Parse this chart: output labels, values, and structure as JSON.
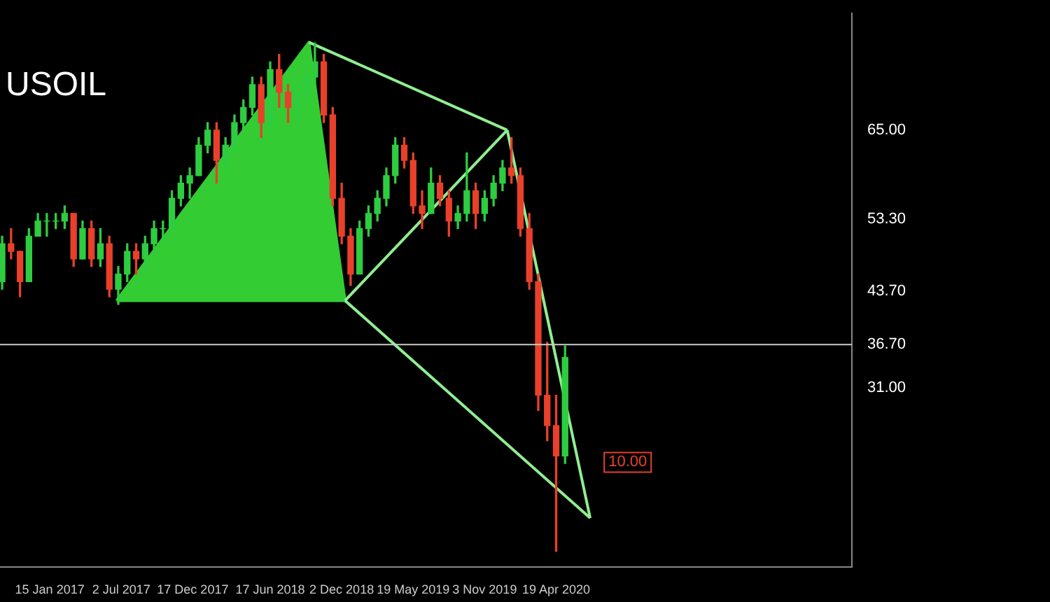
{
  "chart_data": {
    "type": "candlestick",
    "title": "USOIL",
    "x": [
      "2016-09-25",
      "2016-10-16",
      "2016-11-06",
      "2016-11-27",
      "2016-12-18",
      "2017-01-08",
      "2017-01-29",
      "2017-02-19",
      "2017-03-12",
      "2017-04-02",
      "2017-04-23",
      "2017-05-14",
      "2017-06-04",
      "2017-06-25",
      "2017-07-16",
      "2017-08-06",
      "2017-08-27",
      "2017-09-17",
      "2017-10-08",
      "2017-10-29",
      "2017-11-19",
      "2017-12-10",
      "2017-12-31",
      "2018-01-21",
      "2018-02-11",
      "2018-03-04",
      "2018-03-25",
      "2018-04-15",
      "2018-05-06",
      "2018-05-27",
      "2018-06-17",
      "2018-07-08",
      "2018-07-29",
      "2018-08-19",
      "2018-09-09",
      "2018-09-30",
      "2018-10-21",
      "2018-11-11",
      "2018-12-02",
      "2018-12-23",
      "2019-01-13",
      "2019-02-03",
      "2019-02-24",
      "2019-03-17",
      "2019-04-07",
      "2019-04-28",
      "2019-05-19",
      "2019-06-09",
      "2019-06-30",
      "2019-07-21",
      "2019-08-11",
      "2019-09-01",
      "2019-09-22",
      "2019-10-13",
      "2019-11-03",
      "2019-11-24",
      "2019-12-15",
      "2020-01-05",
      "2020-01-26",
      "2020-02-16",
      "2020-03-08",
      "2020-03-29",
      "2020-04-19",
      "2020-05-10"
    ],
    "ohlc": [
      [
        45,
        51,
        44,
        50
      ],
      [
        50,
        52,
        48,
        49
      ],
      [
        49,
        49,
        43,
        45
      ],
      [
        45,
        52,
        45,
        51
      ],
      [
        51,
        54,
        51,
        53
      ],
      [
        53,
        54,
        51,
        53
      ],
      [
        53,
        54,
        52,
        53
      ],
      [
        53,
        55,
        52,
        54
      ],
      [
        54,
        54,
        47,
        48
      ],
      [
        48,
        53,
        48,
        52
      ],
      [
        52,
        53,
        47,
        48
      ],
      [
        48,
        52,
        47,
        50
      ],
      [
        50,
        51,
        43,
        44
      ],
      [
        44,
        47,
        42,
        46
      ],
      [
        46,
        50,
        45,
        49
      ],
      [
        49,
        50,
        46,
        48
      ],
      [
        48,
        51,
        46,
        50
      ],
      [
        50,
        53,
        49,
        52
      ],
      [
        52,
        53,
        50,
        52
      ],
      [
        52,
        57,
        52,
        56
      ],
      [
        56,
        59,
        55,
        58
      ],
      [
        58,
        60,
        56,
        59
      ],
      [
        59,
        64,
        59,
        63
      ],
      [
        63,
        66,
        62,
        65
      ],
      [
        65,
        66,
        58,
        61
      ],
      [
        61,
        64,
        60,
        63
      ],
      [
        63,
        67,
        62,
        66
      ],
      [
        66,
        69,
        65,
        68
      ],
      [
        68,
        72,
        67,
        71
      ],
      [
        71,
        72,
        64,
        66
      ],
      [
        66,
        74,
        65,
        73
      ],
      [
        73,
        75,
        68,
        70
      ],
      [
        70,
        71,
        66,
        68
      ],
      [
        68,
        71,
        66,
        70
      ],
      [
        70,
        73,
        68,
        72
      ],
      [
        72,
        76.5,
        71,
        74
      ],
      [
        74,
        75,
        66,
        67
      ],
      [
        67,
        68,
        55,
        56
      ],
      [
        56,
        58,
        50,
        51
      ],
      [
        51,
        52,
        44.5,
        46
      ],
      [
        46,
        53,
        46,
        52
      ],
      [
        52,
        55,
        51,
        54
      ],
      [
        54,
        57,
        53,
        56
      ],
      [
        56,
        60,
        55,
        59
      ],
      [
        59,
        64,
        58,
        63
      ],
      [
        63,
        64,
        60,
        61
      ],
      [
        61,
        62,
        54,
        55
      ],
      [
        55,
        57,
        52,
        54
      ],
      [
        54,
        60,
        54,
        58
      ],
      [
        58,
        59,
        55,
        56
      ],
      [
        56,
        57,
        51,
        53
      ],
      [
        53,
        55,
        52,
        54
      ],
      [
        54,
        62,
        53,
        57
      ],
      [
        57,
        58,
        52,
        54
      ],
      [
        54,
        57,
        53,
        56
      ],
      [
        56,
        59,
        55,
        58
      ],
      [
        58,
        61,
        57,
        60
      ],
      [
        60,
        64,
        58,
        59
      ],
      [
        59,
        60,
        51,
        52
      ],
      [
        52,
        54,
        44,
        45
      ],
      [
        45,
        46,
        28,
        30
      ],
      [
        30,
        37,
        24,
        26
      ],
      [
        26,
        30,
        9.4,
        22
      ],
      [
        22,
        36.5,
        21,
        35
      ]
    ],
    "series": [
      {
        "type": "area",
        "color": "#33cc33",
        "x": [
          "2017-06-21",
          "2018-09-16",
          "2018-12-10",
          "2017-06-21"
        ],
        "values": [
          42.5,
          76.6,
          42.5,
          42.5
        ]
      },
      {
        "type": "line",
        "color": "#90ee90",
        "x": [
          "2018-12-10",
          "2019-12-26"
        ],
        "values": [
          42.5,
          65
        ]
      },
      {
        "type": "line",
        "color": "#90ee90",
        "x": [
          "2019-12-26",
          "2020-07-08"
        ],
        "values": [
          65,
          13.8
        ]
      },
      {
        "type": "line",
        "color": "#90ee90",
        "x": [
          "2018-12-10",
          "2020-07-08"
        ],
        "values": [
          42.5,
          13.8
        ]
      },
      {
        "type": "line",
        "color": "#90ee90",
        "x": [
          "2018-09-16",
          "2019-12-26"
        ],
        "values": [
          76.6,
          65
        ]
      }
    ],
    "xlim": [
      "2016-09-20",
      "2022-03-15"
    ],
    "xticks": [
      {
        "value": "2017-01-15",
        "label": "15 Jan 2017"
      },
      {
        "value": "2017-07-02",
        "label": "2 Jul 2017"
      },
      {
        "value": "2017-12-17",
        "label": "17 Dec 2017"
      },
      {
        "value": "2018-06-17",
        "label": "17 Jun 2018"
      },
      {
        "value": "2018-12-02",
        "label": "2 Dec 2018"
      },
      {
        "value": "2019-05-19",
        "label": "19 May 2019"
      },
      {
        "value": "2019-11-03",
        "label": "3 Nov 2019"
      },
      {
        "value": "2020-04-19",
        "label": "19 Apr 2020"
      }
    ],
    "ylim": [
      7.3,
      80.4
    ],
    "yticks": [
      {
        "value": 65,
        "label": "65.00"
      },
      {
        "value": 53.3,
        "label": "53.30"
      },
      {
        "value": 43.7,
        "label": "43.70"
      },
      {
        "value": 36.7,
        "label": "36.70"
      },
      {
        "value": 31,
        "label": "31.00"
      }
    ],
    "ref_lines": [
      {
        "axis": "y",
        "value": 36.7,
        "color": "#cccccc"
      }
    ],
    "annotations": [
      "10.00"
    ],
    "legend": false,
    "grid": false
  }
}
